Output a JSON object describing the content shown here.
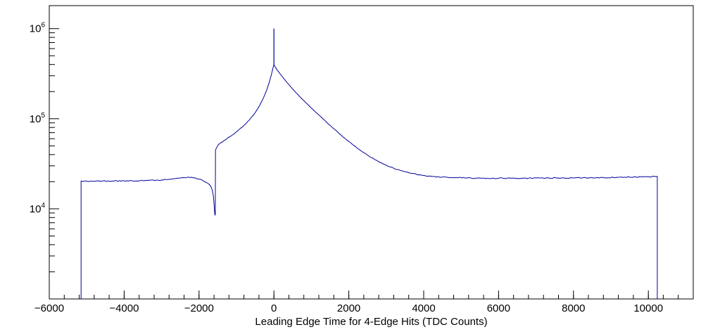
{
  "chart_data": {
    "type": "line",
    "title": "",
    "xlabel": "Leading Edge Time for 4-Edge Hits (TDC Counts)",
    "ylabel": "",
    "background_color": "#ffffff",
    "frame_color": "#000000",
    "line_color": "#00009a",
    "x_axis": {
      "scale": "linear",
      "min": -6000,
      "max": 11200,
      "major_ticks": [
        -6000,
        -4000,
        -2000,
        0,
        2000,
        4000,
        6000,
        8000,
        10000
      ],
      "tick_labels": [
        "−6000",
        "−4000",
        "−2000",
        "0",
        "2000",
        "4000",
        "6000",
        "8000",
        "10000"
      ],
      "minor_step": 400
    },
    "y_axis": {
      "scale": "log",
      "min": 1000,
      "max": 1800000,
      "labeled_decades": [
        4,
        5,
        6
      ],
      "decade_ticks": [
        1000,
        10000,
        100000,
        1000000
      ]
    },
    "jitter": {
      "amp": 0.006,
      "step": 40,
      "seed": 7
    },
    "spike": [
      [
        0,
        400000
      ],
      [
        0,
        1000000
      ]
    ],
    "points": [
      [
        -5150,
        1000
      ],
      [
        -5150,
        20400
      ],
      [
        -5000,
        20300
      ],
      [
        -4800,
        20250
      ],
      [
        -4600,
        20350
      ],
      [
        -4400,
        20300
      ],
      [
        -4200,
        20450
      ],
      [
        -4000,
        20400
      ],
      [
        -3800,
        20550
      ],
      [
        -3600,
        20500
      ],
      [
        -3400,
        20650
      ],
      [
        -3200,
        20750
      ],
      [
        -3000,
        20950
      ],
      [
        -2800,
        21250
      ],
      [
        -2600,
        21800
      ],
      [
        -2450,
        22200
      ],
      [
        -2300,
        22500
      ],
      [
        -2200,
        22400
      ],
      [
        -2100,
        22050
      ],
      [
        -2000,
        21400
      ],
      [
        -1900,
        20600
      ],
      [
        -1800,
        19600
      ],
      [
        -1740,
        18900
      ],
      [
        -1690,
        17900
      ],
      [
        -1650,
        16300
      ],
      [
        -1620,
        14200
      ],
      [
        -1600,
        11500
      ],
      [
        -1585,
        9200
      ],
      [
        -1575,
        8500
      ],
      [
        -1565,
        8700
      ],
      [
        -1560,
        45000
      ],
      [
        -1500,
        50500
      ],
      [
        -1420,
        54000
      ],
      [
        -1340,
        57000
      ],
      [
        -1260,
        60000
      ],
      [
        -1180,
        63000
      ],
      [
        -1100,
        66500
      ],
      [
        -1020,
        70500
      ],
      [
        -940,
        75000
      ],
      [
        -860,
        80000
      ],
      [
        -780,
        86000
      ],
      [
        -700,
        93000
      ],
      [
        -620,
        101000
      ],
      [
        -540,
        111000
      ],
      [
        -460,
        124000
      ],
      [
        -380,
        141000
      ],
      [
        -300,
        163000
      ],
      [
        -240,
        186000
      ],
      [
        -180,
        215000
      ],
      [
        -130,
        250000
      ],
      [
        -90,
        285000
      ],
      [
        -60,
        318000
      ],
      [
        -35,
        350000
      ],
      [
        -15,
        380000
      ],
      [
        0,
        400000
      ],
      [
        15,
        388000
      ],
      [
        40,
        372000
      ],
      [
        70,
        356000
      ],
      [
        100,
        342000
      ],
      [
        140,
        325000
      ],
      [
        180,
        309000
      ],
      [
        230,
        291000
      ],
      [
        280,
        274000
      ],
      [
        340,
        255000
      ],
      [
        400,
        239000
      ],
      [
        470,
        221000
      ],
      [
        540,
        205000
      ],
      [
        610,
        191000
      ],
      [
        690,
        176000
      ],
      [
        770,
        163000
      ],
      [
        850,
        151000
      ],
      [
        940,
        139000
      ],
      [
        1030,
        128000
      ],
      [
        1120,
        118000
      ],
      [
        1210,
        109000
      ],
      [
        1300,
        100500
      ],
      [
        1400,
        92000
      ],
      [
        1500,
        84500
      ],
      [
        1600,
        77500
      ],
      [
        1700,
        71500
      ],
      [
        1800,
        65500
      ],
      [
        1900,
        60500
      ],
      [
        2000,
        56000
      ],
      [
        2100,
        51800
      ],
      [
        2200,
        48200
      ],
      [
        2300,
        44900
      ],
      [
        2400,
        42000
      ],
      [
        2500,
        39400
      ],
      [
        2600,
        37100
      ],
      [
        2700,
        35100
      ],
      [
        2800,
        33300
      ],
      [
        2900,
        31800
      ],
      [
        3000,
        30400
      ],
      [
        3100,
        29200
      ],
      [
        3200,
        28200
      ],
      [
        3300,
        27300
      ],
      [
        3400,
        26500
      ],
      [
        3500,
        25800
      ],
      [
        3600,
        25200
      ],
      [
        3700,
        24700
      ],
      [
        3800,
        24250
      ],
      [
        3900,
        23850
      ],
      [
        4000,
        23500
      ],
      [
        4150,
        23100
      ],
      [
        4300,
        22800
      ],
      [
        4500,
        22500
      ],
      [
        4700,
        22300
      ],
      [
        4900,
        22150
      ],
      [
        5100,
        22050
      ],
      [
        5400,
        21950
      ],
      [
        5700,
        21900
      ],
      [
        6000,
        21850
      ],
      [
        6400,
        21850
      ],
      [
        6800,
        21900
      ],
      [
        7200,
        21950
      ],
      [
        7600,
        22000
      ],
      [
        8000,
        22050
      ],
      [
        8400,
        22100
      ],
      [
        8800,
        22200
      ],
      [
        9200,
        22350
      ],
      [
        9600,
        22500
      ],
      [
        9900,
        22700
      ],
      [
        10100,
        22850
      ],
      [
        10240,
        22900
      ],
      [
        10240,
        1000
      ]
    ]
  }
}
